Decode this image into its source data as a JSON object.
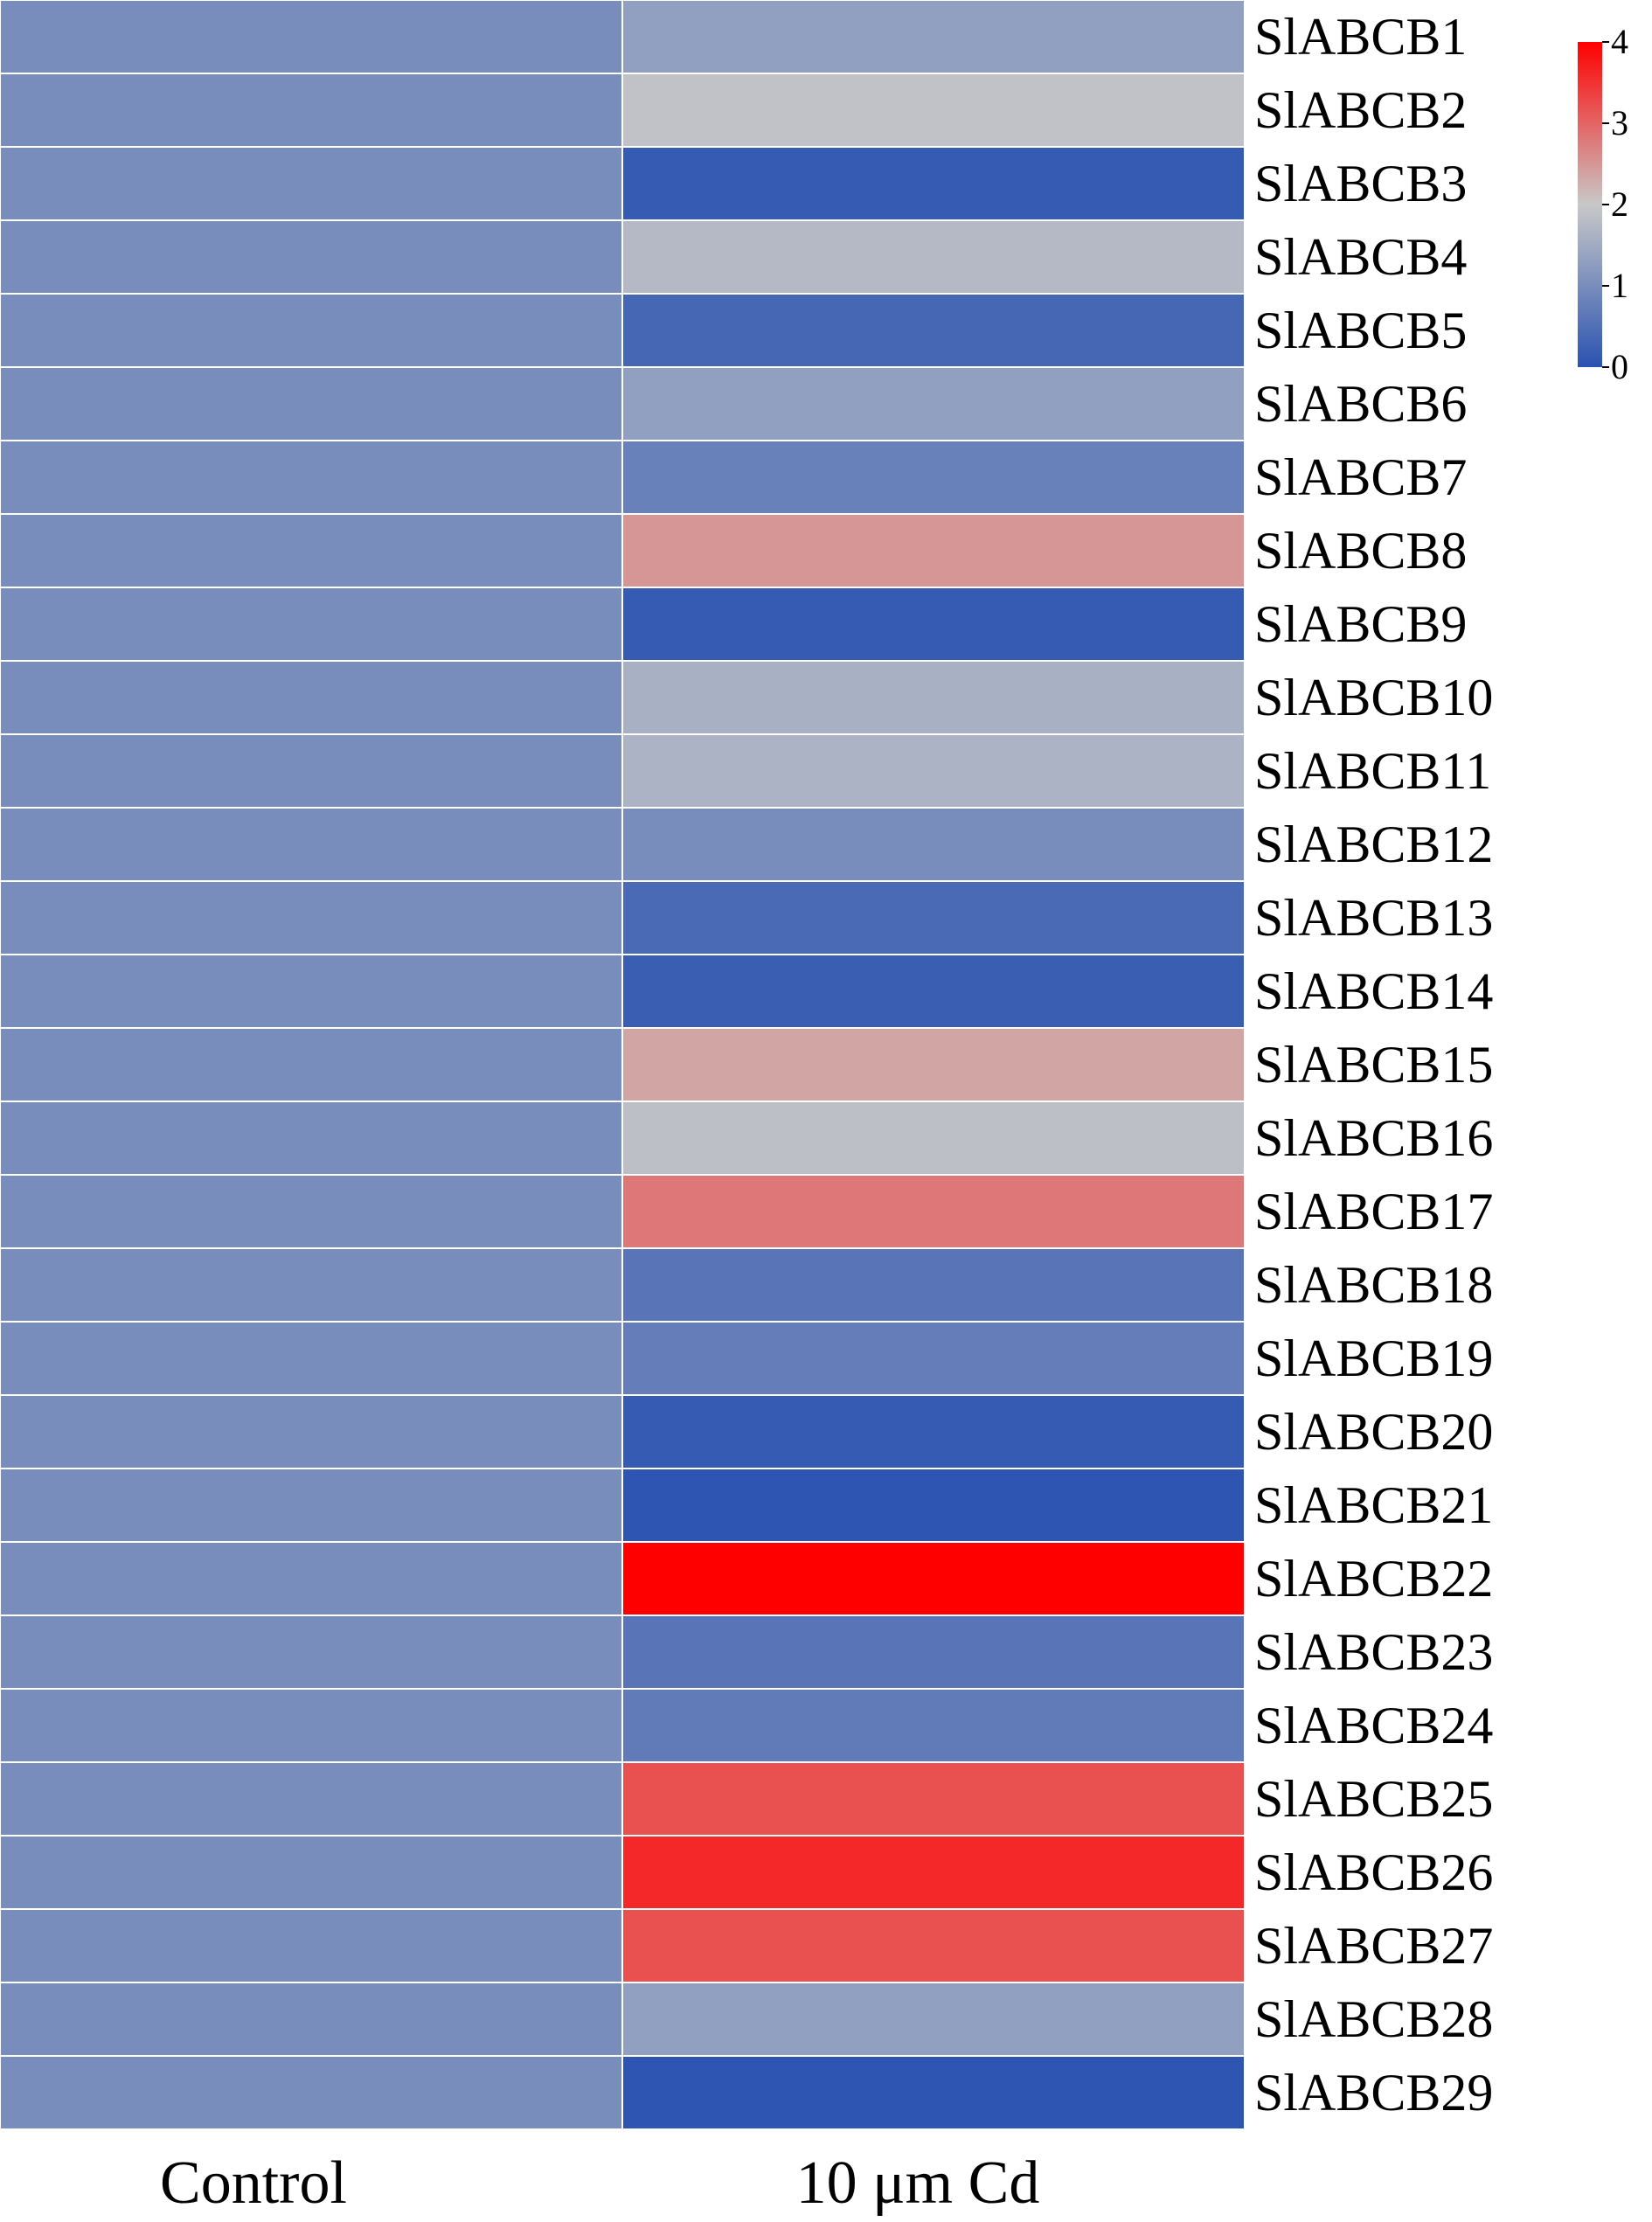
{
  "chart_data": {
    "type": "heatmap",
    "title": "",
    "xlabel": "",
    "ylabel": "",
    "columns": [
      "Control",
      "10 μm Cd"
    ],
    "rows": [
      "SlABCB1",
      "SlABCB2",
      "SlABCB3",
      "SlABCB4",
      "SlABCB5",
      "SlABCB6",
      "SlABCB7",
      "SlABCB8",
      "SlABCB9",
      "SlABCB10",
      "SlABCB11",
      "SlABCB12",
      "SlABCB13",
      "SlABCB14",
      "SlABCB15",
      "SlABCB16",
      "SlABCB17",
      "SlABCB18",
      "SlABCB19",
      "SlABCB20",
      "SlABCB21",
      "SlABCB22",
      "SlABCB23",
      "SlABCB24",
      "SlABCB25",
      "SlABCB26",
      "SlABCB27",
      "SlABCB28",
      "SlABCB29"
    ],
    "values": [
      [
        1.0,
        1.3
      ],
      [
        1.0,
        1.9
      ],
      [
        1.0,
        0.15
      ],
      [
        1.0,
        1.75
      ],
      [
        1.0,
        0.35
      ],
      [
        1.0,
        1.3
      ],
      [
        1.0,
        0.8
      ],
      [
        1.0,
        2.5
      ],
      [
        1.0,
        0.15
      ],
      [
        1.0,
        1.6
      ],
      [
        1.0,
        1.65
      ],
      [
        1.0,
        1.0
      ],
      [
        1.0,
        0.4
      ],
      [
        1.0,
        0.2
      ],
      [
        1.0,
        2.35
      ],
      [
        1.0,
        1.85
      ],
      [
        1.0,
        2.8
      ],
      [
        1.0,
        0.6
      ],
      [
        1.0,
        0.75
      ],
      [
        1.0,
        0.15
      ],
      [
        1.0,
        0.05
      ],
      [
        1.0,
        4.0
      ],
      [
        1.0,
        0.6
      ],
      [
        1.0,
        0.7
      ],
      [
        1.0,
        3.2
      ],
      [
        1.0,
        3.6
      ],
      [
        1.0,
        3.2
      ],
      [
        1.0,
        1.3
      ],
      [
        1.0,
        0.05
      ]
    ],
    "colorbar": {
      "min": 0,
      "max": 4,
      "ticks": [
        "0",
        "1",
        "2",
        "3",
        "4"
      ],
      "colors": [
        "#2a52b0",
        "#c8c8c8",
        "#ff0000"
      ],
      "position": "top-right"
    },
    "grid": true,
    "cell_border_color": "#ffffff"
  }
}
